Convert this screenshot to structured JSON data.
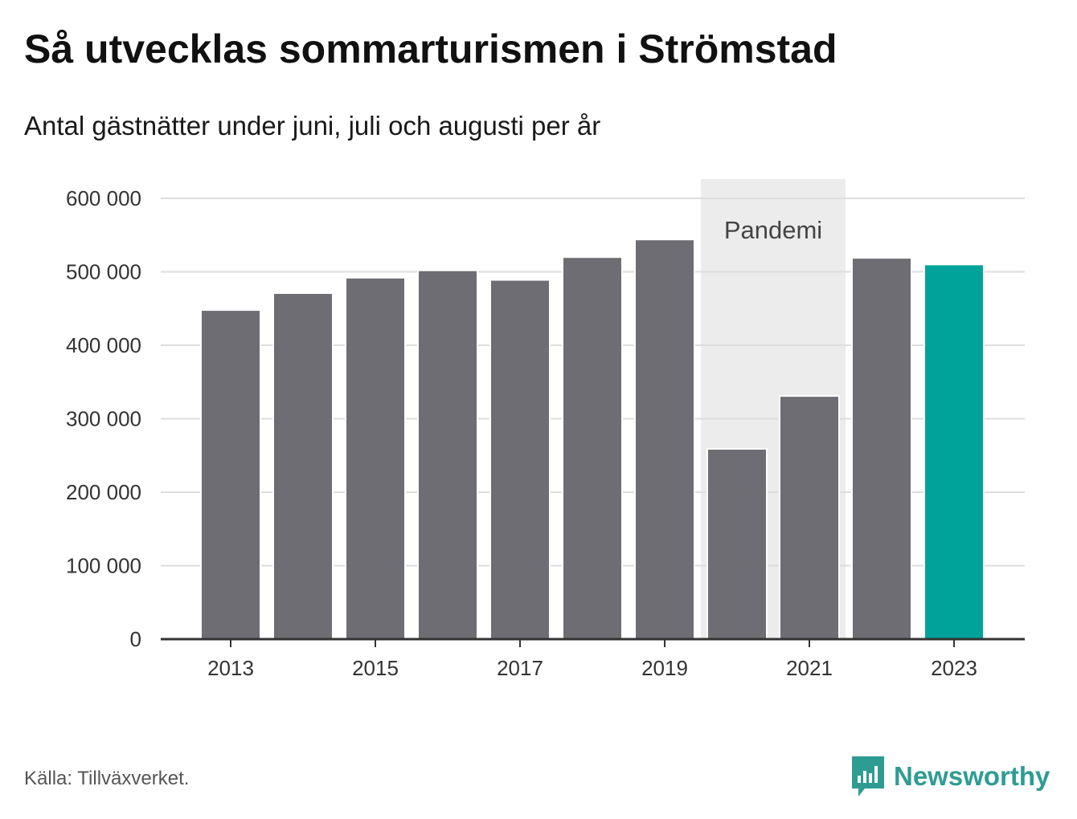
{
  "title": "Så utvecklas sommarturismen i Strömstad",
  "subtitle": "Antal gästnätter under juni, juli och augusti per år",
  "source": "Källa: Tillväxverket.",
  "brand": {
    "name": "Newsworthy",
    "icon": "newsworthy-logo-icon",
    "color": "#2e9c92"
  },
  "chart_data": {
    "type": "bar",
    "title": "Så utvecklas sommarturismen i Strömstad",
    "subtitle": "Antal gästnätter under juni, juli och augusti per år",
    "xlabel": "",
    "ylabel": "",
    "categories": [
      "2013",
      "2014",
      "2015",
      "2016",
      "2017",
      "2018",
      "2019",
      "2020",
      "2021",
      "2022",
      "2023"
    ],
    "values": [
      448000,
      471000,
      492000,
      502000,
      489000,
      520000,
      544000,
      259000,
      331000,
      519000,
      510000
    ],
    "x_tick_labels": [
      "2013",
      "2015",
      "2017",
      "2019",
      "2021",
      "2023"
    ],
    "y_ticks": [
      0,
      100000,
      200000,
      300000,
      400000,
      500000,
      600000
    ],
    "y_tick_labels": [
      "0",
      "100 000",
      "200 000",
      "300 000",
      "400 000",
      "500 000",
      "600 000"
    ],
    "ylim": [
      0,
      600000
    ],
    "grid": true,
    "colors": {
      "default_bar": "#6e6d73",
      "highlight_bar": "#00a39a",
      "highlight_category": "2023",
      "region_fill": "#ececec",
      "gridline": "#dddddd",
      "axis": "#333333"
    },
    "annotations": [
      {
        "type": "shaded_region",
        "label": "Pandemi",
        "from_category": "2020",
        "to_category": "2021"
      }
    ]
  }
}
